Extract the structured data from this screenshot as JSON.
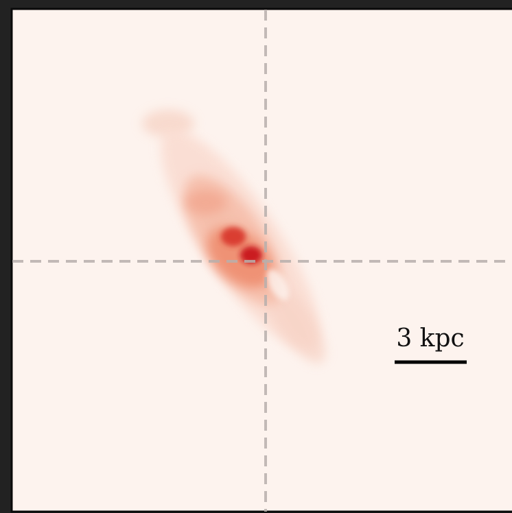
{
  "scale_bar": {
    "label": "3 kpc"
  }
}
